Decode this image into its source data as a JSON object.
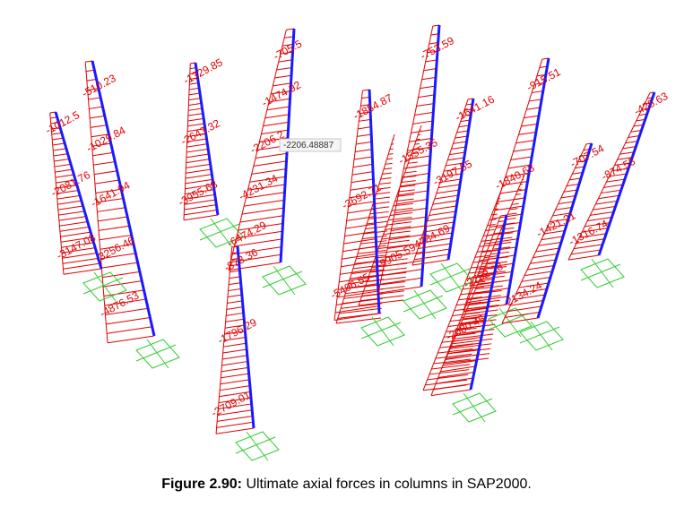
{
  "caption": {
    "number": "Figure 2.90:",
    "text": " Ultimate axial forces in columns in SAP2000."
  },
  "colors": {
    "column": "#1a1aff",
    "diagram": "#e00000",
    "support": "#33cc33",
    "tooltip_text": "#333333"
  },
  "tooltip": "-2206.48887",
  "columns": [
    {
      "id": "c1",
      "labels": [
        "-510.23",
        "-1029.84",
        "-1641.94",
        "-3256.46",
        "-4876.53"
      ]
    },
    {
      "id": "c2",
      "labels": [
        "-1012.5",
        "-2081.76",
        "-3147.08"
      ]
    },
    {
      "id": "c3",
      "labels": [
        "-1329.85",
        "-2643.32",
        "-3955.68"
      ]
    },
    {
      "id": "c4",
      "labels": [
        "-705.5",
        "-1474.92",
        "-2206.2",
        "-4231.34",
        "-6474.29"
      ]
    },
    {
      "id": "c5",
      "labels": [
        "-878.36",
        "-1796.29",
        "-2709.01"
      ]
    },
    {
      "id": "c6",
      "labels": [
        "-1884.87",
        "-3692.71",
        "-5496.55"
      ]
    },
    {
      "id": "c7",
      "labels": [
        "-753.59",
        "-1555.35",
        "-5905.59"
      ]
    },
    {
      "id": "c8",
      "labels": [
        "-1641.16",
        "-3197.55",
        "-4784.69"
      ]
    },
    {
      "id": "c9",
      "labels": [
        "-915.51",
        "-1840.63",
        "-2752.28"
      ]
    },
    {
      "id": "c10",
      "labels": [
        "-707.54",
        "-1421.21",
        "-2134.24"
      ]
    },
    {
      "id": "c11",
      "labels": [
        "-425.63",
        "-874.53",
        "-1316.74"
      ]
    },
    {
      "id": "c12",
      "labels": [
        "-2080.45"
      ]
    }
  ]
}
